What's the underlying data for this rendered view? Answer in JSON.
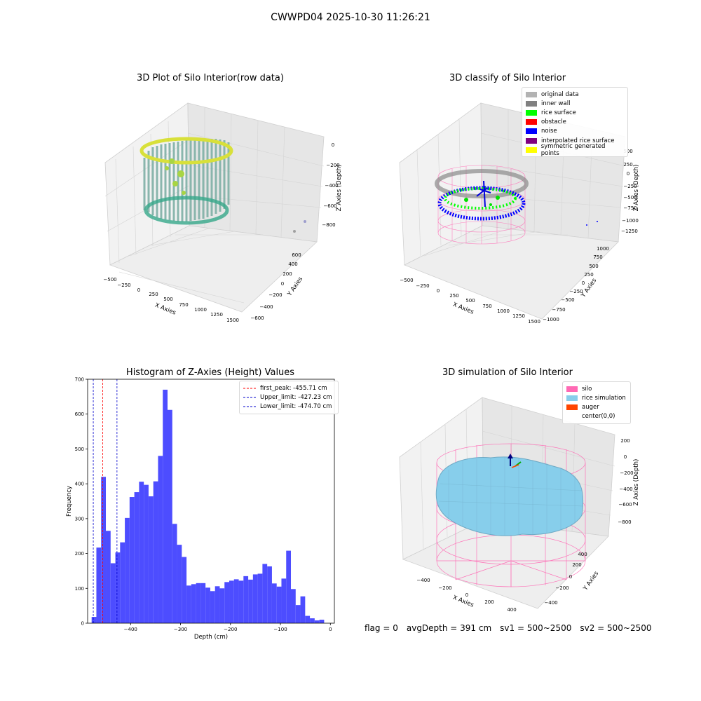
{
  "figure_title": "CWWPD04 2025-10-30 11:26:21",
  "footer": {
    "flag": "flag = 0",
    "avg_depth": "avgDepth = 391 cm",
    "sv1": "sv1 = 500~2500",
    "sv2": "sv2 = 500~2500"
  },
  "colors": {
    "hist_bar": "#4d4dff",
    "first_peak": "#ff0000",
    "limits": "#0000cc",
    "silo": "#ff69b4",
    "rice_sim": "#87ceeb",
    "auger": "#ff4500"
  },
  "chart_data": [
    {
      "type": "scatter",
      "projection": "3d",
      "title": "3D Plot of Silo Interior(row data)",
      "xlabel": "X Axies",
      "ylabel": "Y Axies",
      "zlabel": "Z Axies (Depth)",
      "x_ticks": [
        "−500",
        "−250",
        "0",
        "250",
        "500",
        "750",
        "1000",
        "1250",
        "1500"
      ],
      "y_ticks": [
        "−600",
        "−400",
        "−200",
        "0",
        "200",
        "400",
        "600"
      ],
      "z_ticks": [
        "−800",
        "−600",
        "−400",
        "−200",
        "0"
      ],
      "colormap": "viridis"
    },
    {
      "type": "scatter",
      "projection": "3d",
      "title": "3D classify of Silo Interior",
      "xlabel": "X Axies",
      "ylabel": "Y Axies",
      "zlabel": "Z Axies (Depth)",
      "x_ticks": [
        "−500",
        "−250",
        "0",
        "250",
        "500",
        "750",
        "1000",
        "1250",
        "1500"
      ],
      "y_ticks": [
        "−1000",
        "−750",
        "−500",
        "−250",
        "0",
        "250",
        "500",
        "750",
        "1000"
      ],
      "z_ticks": [
        "−1250",
        "−1000",
        "−750",
        "−500",
        "−250",
        "0",
        "250",
        "500"
      ],
      "legend": [
        {
          "label": "original data",
          "color": "#b3b3b3"
        },
        {
          "label": "inner wall",
          "color": "#808080"
        },
        {
          "label": "rice surface",
          "color": "#00ff00"
        },
        {
          "label": "obstacle",
          "color": "#ff0000"
        },
        {
          "label": "noise",
          "color": "#0000ff"
        },
        {
          "label": "interpolated rice surface",
          "color": "#800080"
        },
        {
          "label": "symmetric generated points",
          "color": "#ffff00"
        }
      ]
    },
    {
      "type": "bar",
      "title": "Histogram of Z-Axies (Height) Values",
      "xlabel": "Depth (cm)",
      "ylabel": "Frequency",
      "xlim": [
        -486,
        8
      ],
      "ylim": [
        0,
        700
      ],
      "x_ticks": [
        -400,
        -300,
        -200,
        -100,
        0
      ],
      "x_tick_labels": [
        "−400",
        "−300",
        "−200",
        "−100",
        "0"
      ],
      "y_ticks": [
        0,
        100,
        200,
        300,
        400,
        500,
        600,
        700
      ],
      "bin_start": -478,
      "bin_width": 9.5,
      "values": [
        18,
        217,
        420,
        265,
        172,
        203,
        232,
        302,
        362,
        376,
        406,
        397,
        364,
        407,
        480,
        670,
        612,
        285,
        225,
        190,
        108,
        112,
        115,
        115,
        102,
        92,
        106,
        100,
        118,
        122,
        126,
        122,
        135,
        125,
        140,
        142,
        170,
        163,
        114,
        105,
        128,
        208,
        98,
        52,
        77,
        21,
        14,
        8,
        10
      ],
      "vlines": [
        {
          "label": "first_peak: -455.71 cm",
          "x": -455.71,
          "color": "#ff0000"
        },
        {
          "label": "Upper_limit: -427.23 cm",
          "x": -427.23,
          "color": "#0000cc"
        },
        {
          "label": "Lower_limit: -474.70 cm",
          "x": -474.7,
          "color": "#0000cc"
        }
      ],
      "legend_position": "upper right"
    },
    {
      "type": "surface",
      "projection": "3d",
      "title": "3D simulation of Silo Interior",
      "xlabel": "X Axies",
      "ylabel": "Y Axies",
      "zlabel": "Z Axies (Depth)",
      "x_ticks": [
        "−400",
        "−200",
        "0",
        "200",
        "400"
      ],
      "y_ticks": [
        "−400",
        "−200",
        "0",
        "200",
        "400"
      ],
      "z_ticks": [
        "−800",
        "−600",
        "−400",
        "−200",
        "0",
        "200"
      ],
      "legend": [
        {
          "label": "silo",
          "color": "#ff69b4"
        },
        {
          "label": "rice simulation",
          "color": "#87ceeb"
        },
        {
          "label": "auger",
          "color": "#ff4500"
        },
        {
          "label": "center(0,0)",
          "color": ""
        }
      ]
    }
  ]
}
